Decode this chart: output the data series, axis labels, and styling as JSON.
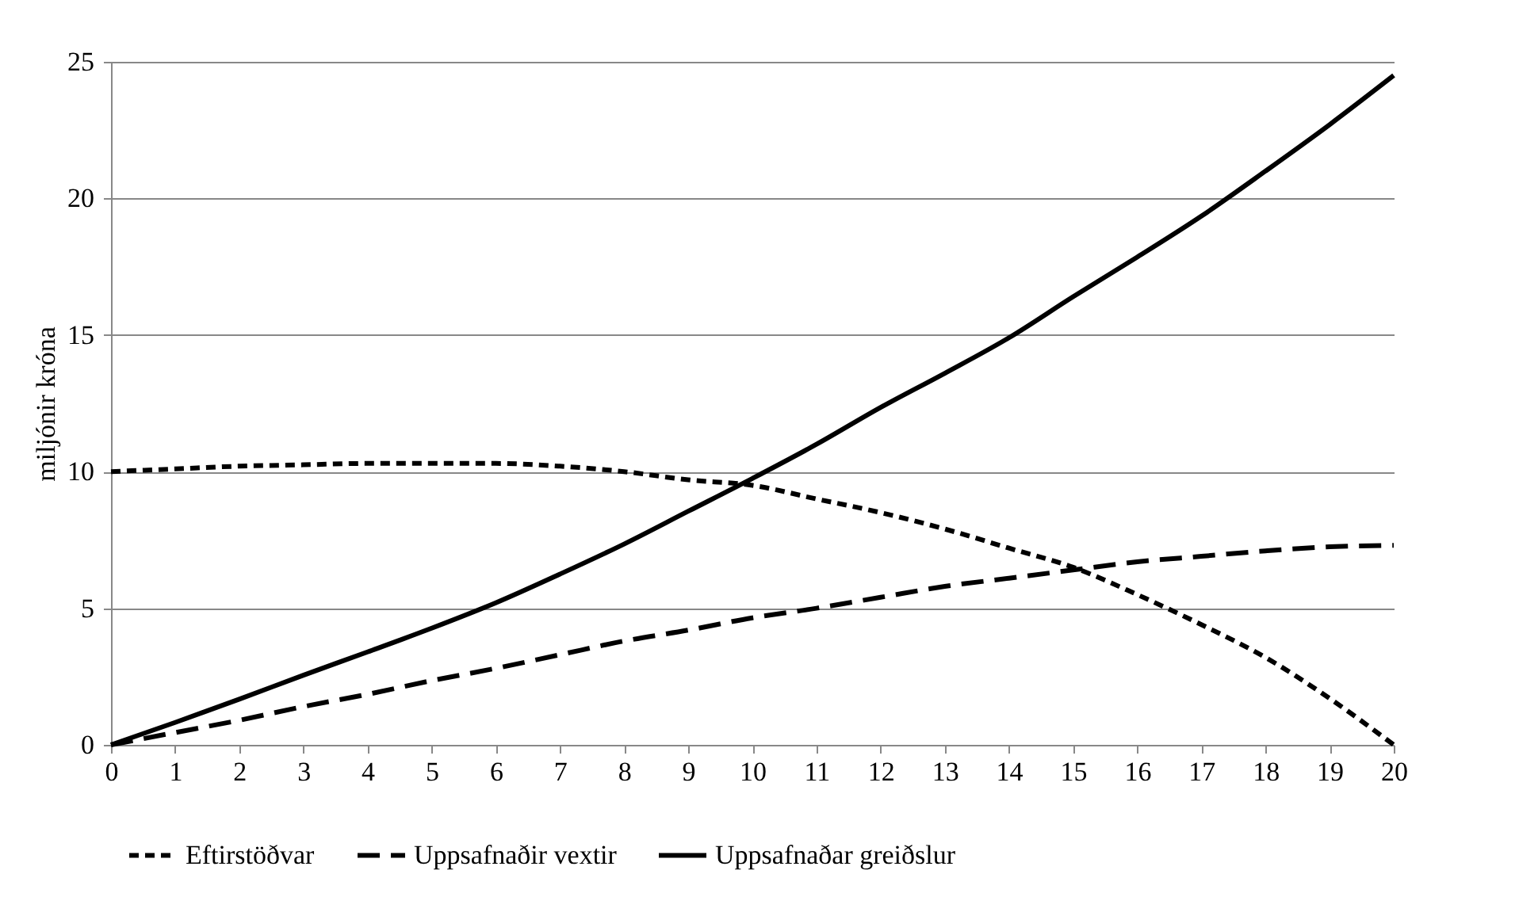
{
  "chart_data": {
    "type": "line",
    "ylabel": "miljónir króna",
    "x": [
      0,
      1,
      2,
      3,
      4,
      5,
      6,
      7,
      8,
      9,
      10,
      11,
      12,
      13,
      14,
      15,
      16,
      17,
      18,
      19,
      20
    ],
    "xlim": [
      0,
      20
    ],
    "xticks": [
      0,
      1,
      2,
      3,
      4,
      5,
      6,
      7,
      8,
      9,
      10,
      11,
      12,
      13,
      14,
      15,
      16,
      17,
      18,
      19,
      20
    ],
    "ylim": [
      0,
      25
    ],
    "yticks": [
      0,
      5,
      10,
      15,
      20,
      25
    ],
    "grid": "y",
    "legend": "bottom",
    "series": [
      {
        "name": "Eftirstöðvar",
        "color": "#000000",
        "line_style": "dotted",
        "values": [
          10,
          10.1,
          10.2,
          10.25,
          10.3,
          10.3,
          10.3,
          10.2,
          10.0,
          9.7,
          9.5,
          9.0,
          8.5,
          7.9,
          7.2,
          6.5,
          5.5,
          4.4,
          3.2,
          1.7,
          0
        ]
      },
      {
        "name": "Uppsafnaðir vextir",
        "color": "#000000",
        "line_style": "dashed",
        "values": [
          0,
          0.45,
          0.9,
          1.4,
          1.85,
          2.35,
          2.8,
          3.3,
          3.8,
          4.2,
          4.65,
          5.0,
          5.4,
          5.8,
          6.1,
          6.4,
          6.7,
          6.9,
          7.1,
          7.25,
          7.3
        ]
      },
      {
        "name": "Uppsafnaðar greiðslur",
        "color": "#000000",
        "line_style": "solid",
        "values": [
          0,
          0.82,
          1.67,
          2.55,
          3.4,
          4.27,
          5.2,
          6.25,
          7.35,
          8.55,
          9.75,
          11.0,
          12.35,
          13.6,
          14.9,
          16.4,
          17.85,
          19.35,
          21.0,
          22.7,
          24.5
        ]
      }
    ]
  }
}
